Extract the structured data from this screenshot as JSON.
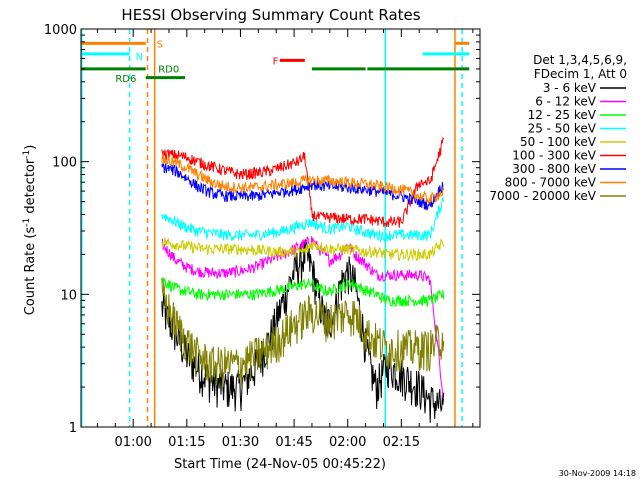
{
  "chart_data": {
    "type": "line",
    "title": "HESSI Observing Summary Count Rates",
    "xlabel": "Start Time (24-Nov-05 00:45:22)",
    "ylabel": "Count Rate (s",
    "ylabel_sup": "-1",
    "ylabel_mid": " detector",
    "ylabel_end": ")",
    "yscale": "log",
    "ylim": [
      1,
      1000
    ],
    "y_ticks": [
      {
        "v": 1,
        "label": "1"
      },
      {
        "v": 10,
        "label": "10"
      },
      {
        "v": 100,
        "label": "100"
      },
      {
        "v": 1000,
        "label": "1000"
      }
    ],
    "xlim_min": [
      45.4,
      157
    ],
    "x_ticks": [
      {
        "v": 60,
        "label": "01:00"
      },
      {
        "v": 75,
        "label": "01:15"
      },
      {
        "v": 90,
        "label": "01:30"
      },
      {
        "v": 105,
        "label": "01:45"
      },
      {
        "v": 120,
        "label": "02:00"
      },
      {
        "v": 135,
        "label": "02:15"
      }
    ],
    "legend_header": [
      "Det 1,3,4,5,6,9,",
      "FDecim 1, Att 0"
    ],
    "legend_placement": "right",
    "footer_date": "30-Nov-2009 14:18",
    "data_start_min": 68,
    "data_end_min": 147,
    "series": [
      {
        "name": "3 - 6 keV",
        "color": "#000000",
        "x": [
          68,
          72,
          75,
          78,
          82,
          86,
          90,
          94,
          98,
          102,
          105,
          108,
          110,
          112,
          114,
          116,
          118,
          120,
          122,
          124,
          126,
          128,
          131,
          135,
          140,
          143,
          147
        ],
        "y": [
          8,
          5,
          3.5,
          2.8,
          2.2,
          2,
          2,
          2.8,
          4.5,
          9,
          15,
          20,
          16,
          9,
          6,
          7,
          12,
          15,
          12,
          6,
          3,
          2,
          3,
          2.5,
          2,
          1.6,
          1.4
        ]
      },
      {
        "name": "6 - 12 keV",
        "color": "#ff00ff",
        "x": [
          68,
          72,
          75,
          78,
          82,
          86,
          90,
          94,
          98,
          102,
          105,
          108,
          110,
          112,
          115,
          118,
          120,
          122,
          124,
          126,
          128,
          131,
          135,
          140,
          143,
          147
        ],
        "y": [
          24,
          18,
          16,
          15,
          14.5,
          14.5,
          15,
          16,
          18,
          20,
          22,
          24,
          26,
          22,
          18,
          20,
          24,
          20,
          18,
          16,
          14,
          14,
          14,
          14,
          13,
          1.5
        ]
      },
      {
        "name": "12 - 25 keV",
        "color": "#00ff00",
        "x": [
          68,
          72,
          75,
          78,
          82,
          86,
          90,
          94,
          98,
          102,
          105,
          108,
          110,
          112,
          115,
          118,
          120,
          122,
          124,
          126,
          128,
          131,
          135,
          140,
          143,
          147
        ],
        "y": [
          13,
          11,
          10.5,
          10,
          10,
          10,
          10,
          10,
          10.5,
          11,
          11.5,
          12,
          12,
          11,
          10.5,
          11.5,
          12,
          12,
          11,
          10.5,
          10,
          9,
          9,
          9,
          9,
          10
        ]
      },
      {
        "name": "25 - 50 keV",
        "color": "#00ffff",
        "x": [
          68,
          72,
          75,
          78,
          82,
          86,
          90,
          94,
          98,
          102,
          105,
          108,
          110,
          112,
          115,
          118,
          120,
          122,
          124,
          126,
          128,
          131,
          135,
          140,
          143,
          147
        ],
        "y": [
          40,
          35,
          32,
          30,
          29,
          28,
          28,
          28,
          29,
          30,
          32,
          34,
          35,
          33,
          31,
          32,
          33,
          31,
          30,
          29,
          28,
          28,
          28,
          28,
          28,
          55
        ]
      },
      {
        "name": "50 - 100 keV",
        "color": "#cccc00",
        "x": [
          68,
          75,
          80,
          90,
          100,
          108,
          110,
          115,
          120,
          125,
          128,
          131,
          135,
          140,
          143,
          147
        ],
        "y": [
          25,
          23,
          22,
          22,
          21,
          21,
          24,
          22,
          22,
          21,
          21,
          20,
          20,
          20,
          20,
          25
        ]
      },
      {
        "name": "100 - 300 keV",
        "color": "#ff0000",
        "x": [
          68,
          72,
          75,
          78,
          82,
          86,
          90,
          94,
          98,
          102,
          106,
          108,
          110,
          112,
          115,
          120,
          125,
          128,
          131,
          135,
          140,
          143,
          147
        ],
        "y": [
          115,
          112,
          108,
          100,
          92,
          85,
          80,
          82,
          85,
          92,
          100,
          110,
          40,
          38,
          38,
          37,
          37,
          36,
          35,
          35,
          70,
          70,
          150
        ]
      },
      {
        "name": "300 - 800 keV",
        "color": "#0000ff",
        "x": [
          68,
          72,
          75,
          78,
          82,
          86,
          90,
          94,
          98,
          102,
          106,
          108,
          110,
          112,
          115,
          120,
          125,
          128,
          131,
          135,
          140,
          143,
          147
        ],
        "y": [
          92,
          85,
          75,
          65,
          58,
          55,
          55,
          55,
          57,
          60,
          62,
          65,
          68,
          66,
          65,
          64,
          62,
          60,
          58,
          55,
          50,
          47,
          70
        ]
      },
      {
        "name": "800 - 7000 keV",
        "color": "#ff8000",
        "x": [
          68,
          72,
          75,
          78,
          82,
          86,
          90,
          94,
          98,
          102,
          106,
          108,
          110,
          112,
          115,
          120,
          125,
          128,
          131,
          135,
          140,
          143,
          147
        ],
        "y": [
          105,
          98,
          90,
          80,
          70,
          65,
          64,
          64,
          66,
          68,
          70,
          72,
          73,
          72,
          72,
          70,
          68,
          66,
          64,
          62,
          55,
          52,
          60
        ]
      },
      {
        "name": "7000 - 20000 keV",
        "color": "#808000",
        "x": [
          68,
          72,
          75,
          78,
          82,
          86,
          90,
          94,
          98,
          102,
          105,
          108,
          110,
          112,
          115,
          118,
          120,
          122,
          124,
          126,
          128,
          131,
          135,
          140,
          143,
          147
        ],
        "y": [
          10,
          6,
          4.5,
          3.5,
          3,
          3,
          3,
          3.5,
          4,
          5,
          6,
          7,
          7.5,
          7,
          6.5,
          7,
          7.5,
          7,
          6,
          5,
          4.5,
          4,
          4,
          4,
          4,
          5
        ]
      }
    ],
    "state_bars": [
      {
        "label": "S",
        "color": "#ff8000",
        "value": 780,
        "segments": [
          [
            45.4,
            63.5
          ],
          [
            150,
            154
          ]
        ]
      },
      {
        "label": "N",
        "color": "#00ffff",
        "value": 650,
        "segments": [
          [
            45.4,
            59
          ],
          [
            141,
            154
          ]
        ]
      },
      {
        "label": "F",
        "color": "#ff0000",
        "value": 580,
        "segments": [
          [
            101,
            108
          ]
        ]
      },
      {
        "label": "RD6",
        "color": "#008000",
        "value": 500,
        "segments": [
          [
            45.4,
            63.5
          ],
          [
            110,
            125
          ],
          [
            125.5,
            154
          ]
        ]
      },
      {
        "label": "RD0",
        "color": "#008000",
        "value": 430,
        "segments": [
          [
            63.5,
            74.5
          ]
        ]
      }
    ],
    "vlines": [
      {
        "x": 45.6,
        "color": "#00ffff",
        "style": "solid"
      },
      {
        "x": 59,
        "color": "#00ffff",
        "style": "dashed"
      },
      {
        "x": 64,
        "color": "#ff8000",
        "style": "dashed"
      },
      {
        "x": 66,
        "color": "#ff8000",
        "style": "solid"
      },
      {
        "x": 130.5,
        "color": "#00ffff",
        "style": "solid"
      },
      {
        "x": 150,
        "color": "#ff8000",
        "style": "solid"
      },
      {
        "x": 152,
        "color": "#00ffff",
        "style": "dashed"
      }
    ]
  }
}
